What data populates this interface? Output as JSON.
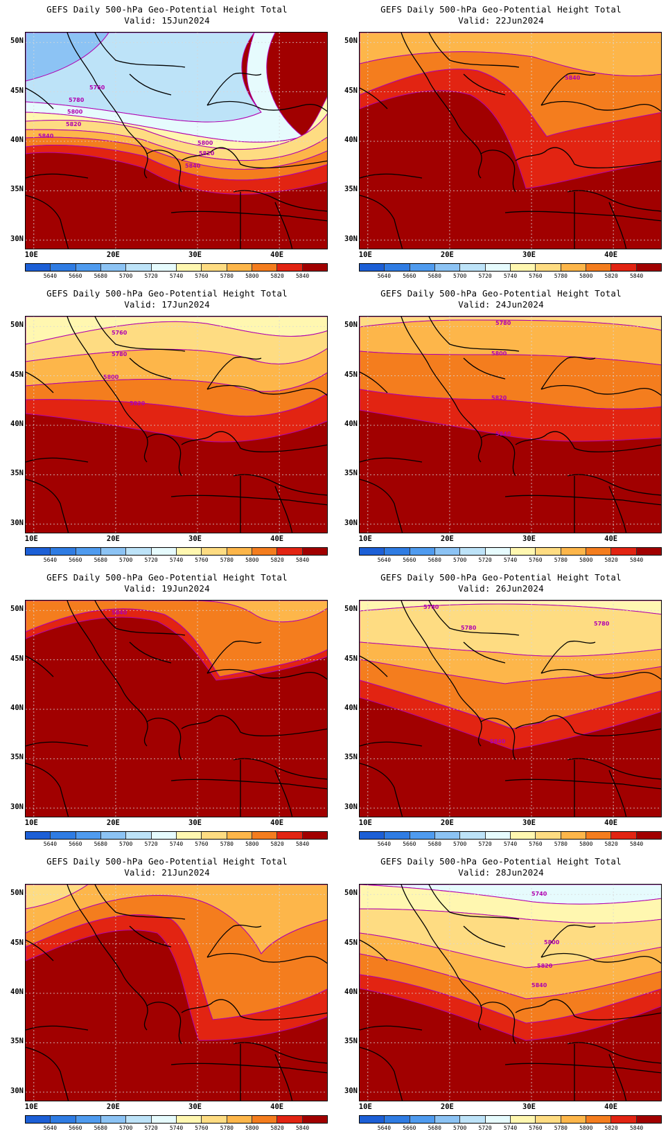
{
  "panels": [
    {
      "title": "GEFS Daily 500-hPa Geo-Potential Height Total",
      "valid": "Valid: 15Jun2024",
      "contour_labels": [
        "5760",
        "5780",
        "5800",
        "5820",
        "5840",
        "5800",
        "5820",
        "5840"
      ]
    },
    {
      "title": "GEFS Daily 500-hPa Geo-Potential Height Total",
      "valid": "Valid: 22Jun2024",
      "contour_labels": [
        "5840"
      ]
    },
    {
      "title": "GEFS Daily 500-hPa Geo-Potential Height Total",
      "valid": "Valid: 17Jun2024",
      "contour_labels": [
        "5760",
        "5780",
        "5800",
        "5820"
      ]
    },
    {
      "title": "GEFS Daily 500-hPa Geo-Potential Height Total",
      "valid": "Valid: 24Jun2024",
      "contour_labels": [
        "5780",
        "5800",
        "5820",
        "5840"
      ]
    },
    {
      "title": "GEFS Daily 500-hPa Geo-Potential Height Total",
      "valid": "Valid: 19Jun2024",
      "contour_labels": [
        "5840"
      ]
    },
    {
      "title": "GEFS Daily 500-hPa Geo-Potential Height Total",
      "valid": "Valid: 26Jun2024",
      "contour_labels": [
        "5760",
        "5780",
        "5780",
        "5840"
      ]
    },
    {
      "title": "GEFS Daily 500-hPa Geo-Potential Height Total",
      "valid": "Valid: 21Jun2024",
      "contour_labels": []
    },
    {
      "title": "GEFS Daily 500-hPa Geo-Potential Height Total",
      "valid": "Valid: 28Jun2024",
      "contour_labels": [
        "5740",
        "5800",
        "5820",
        "5840"
      ]
    }
  ],
  "axes": {
    "lat_labels": [
      "50N",
      "45N",
      "40N",
      "35N",
      "30N"
    ],
    "lon_labels": [
      "10E",
      "20E",
      "30E",
      "40E"
    ],
    "lat_range": [
      29,
      51
    ],
    "lon_range": [
      9,
      46
    ]
  },
  "colorbar": {
    "labels": [
      "5640",
      "5660",
      "5680",
      "5700",
      "5720",
      "5740",
      "5760",
      "5780",
      "5800",
      "5820",
      "5840"
    ],
    "colors": [
      "#1c5fd6",
      "#2f7ce3",
      "#4f9bef",
      "#8cc3f4",
      "#bde3f8",
      "#e6fbfd",
      "#fff7b0",
      "#fedc82",
      "#fdb64a",
      "#f47d1e",
      "#e22412",
      "#a10000"
    ]
  },
  "contour_color": "#b000b0"
}
